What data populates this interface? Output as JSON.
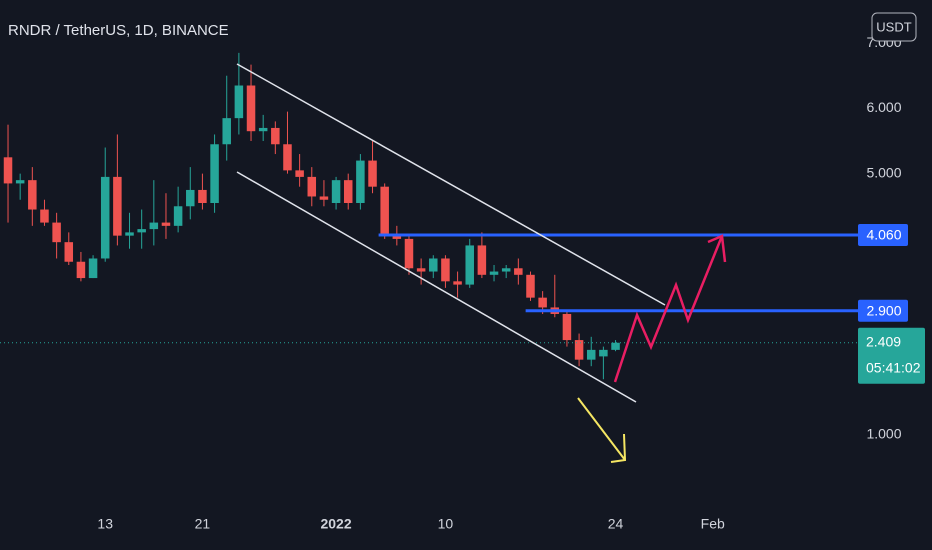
{
  "chart_data": {
    "type": "candlestick",
    "title": "RNDR / TetherUS, 1D, BINANCE",
    "currency": "USDT",
    "x": [
      0,
      1,
      2,
      3,
      4,
      5,
      6,
      7,
      8,
      9,
      10,
      11,
      12,
      13,
      14,
      15,
      16,
      17,
      18,
      19,
      20,
      21,
      22,
      23,
      24,
      25,
      26,
      27,
      28,
      29,
      30,
      31,
      32,
      33,
      34,
      35,
      36,
      37,
      38,
      39,
      40,
      41,
      42,
      43,
      44,
      45,
      46,
      47,
      48,
      49,
      50
    ],
    "open": [
      5.25,
      4.85,
      4.9,
      4.45,
      4.25,
      3.95,
      3.65,
      3.4,
      3.7,
      4.95,
      4.05,
      4.1,
      4.15,
      4.25,
      4.2,
      4.5,
      4.75,
      4.55,
      5.45,
      5.85,
      6.35,
      5.65,
      5.7,
      5.45,
      5.05,
      4.95,
      4.65,
      4.55,
      4.9,
      4.55,
      5.2,
      4.8,
      4.05,
      4.0,
      3.55,
      3.5,
      3.7,
      3.35,
      3.3,
      3.9,
      3.45,
      3.5,
      3.55,
      3.45,
      3.1,
      2.95,
      2.85,
      2.45,
      2.15,
      2.2,
      2.3
    ],
    "high": [
      5.75,
      5.0,
      5.1,
      4.6,
      4.4,
      4.1,
      3.8,
      3.75,
      5.4,
      5.6,
      4.4,
      4.45,
      4.9,
      4.7,
      4.8,
      5.1,
      5.0,
      5.6,
      6.5,
      6.85,
      6.67,
      5.9,
      5.8,
      5.95,
      5.3,
      5.1,
      4.9,
      4.95,
      5.0,
      5.3,
      5.5,
      4.85,
      4.2,
      4.05,
      3.7,
      3.75,
      3.75,
      3.5,
      4.0,
      4.1,
      3.6,
      3.6,
      3.7,
      3.5,
      3.2,
      3.45,
      2.9,
      2.55,
      2.5,
      2.35,
      2.45
    ],
    "low": [
      4.25,
      4.6,
      4.2,
      4.2,
      3.7,
      3.6,
      3.35,
      3.4,
      3.65,
      3.9,
      3.85,
      3.85,
      3.9,
      4.0,
      4.1,
      4.3,
      4.45,
      4.4,
      5.2,
      5.6,
      5.5,
      5.5,
      5.3,
      5.0,
      4.8,
      4.5,
      4.5,
      4.45,
      4.45,
      4.45,
      4.7,
      4.0,
      3.9,
      3.45,
      3.3,
      3.4,
      3.25,
      3.1,
      3.25,
      3.4,
      3.35,
      3.4,
      3.3,
      3.05,
      2.85,
      2.8,
      2.35,
      2.05,
      2.05,
      1.85,
      2.28
    ],
    "close": [
      4.85,
      4.9,
      4.45,
      4.25,
      3.95,
      3.65,
      3.4,
      3.7,
      4.95,
      4.05,
      4.1,
      4.15,
      4.25,
      4.2,
      4.5,
      4.75,
      4.55,
      5.45,
      5.85,
      6.35,
      5.65,
      5.7,
      5.45,
      5.05,
      4.95,
      4.65,
      4.6,
      4.9,
      4.55,
      5.2,
      4.8,
      4.05,
      4.0,
      3.55,
      3.5,
      3.7,
      3.35,
      3.3,
      3.9,
      3.45,
      3.5,
      3.55,
      3.45,
      3.1,
      2.95,
      2.85,
      2.45,
      2.15,
      2.3,
      2.3,
      2.409
    ],
    "up_color": "#26a69a",
    "down_color": "#ef5350",
    "xlim": [
      -0.66,
      70.12
    ],
    "xticks": [
      {
        "value": 8,
        "label": "13"
      },
      {
        "value": 16,
        "label": "21"
      },
      {
        "value": 27,
        "label": "2022"
      },
      {
        "value": 36,
        "label": "10"
      },
      {
        "value": 50,
        "label": "24"
      },
      {
        "value": 58,
        "label": "Feb"
      }
    ],
    "ylim": [
      0,
      7.66
    ],
    "yticks": [
      {
        "value": 1,
        "label": "1.000"
      },
      {
        "value": 5,
        "label": "5.000"
      },
      {
        "value": 6,
        "label": "6.000"
      },
      {
        "value": 7,
        "label": "7.000"
      }
    ],
    "price_lines": [
      {
        "value": 4.06,
        "label": "4.060",
        "color": "#2962ff",
        "start": 30.5
      },
      {
        "value": 2.9,
        "label": "2.900",
        "color": "#2962ff",
        "start": 42.6
      }
    ],
    "last_price": {
      "value": 2.409,
      "label": "2.409",
      "countdown": "05:41:02"
    }
  }
}
